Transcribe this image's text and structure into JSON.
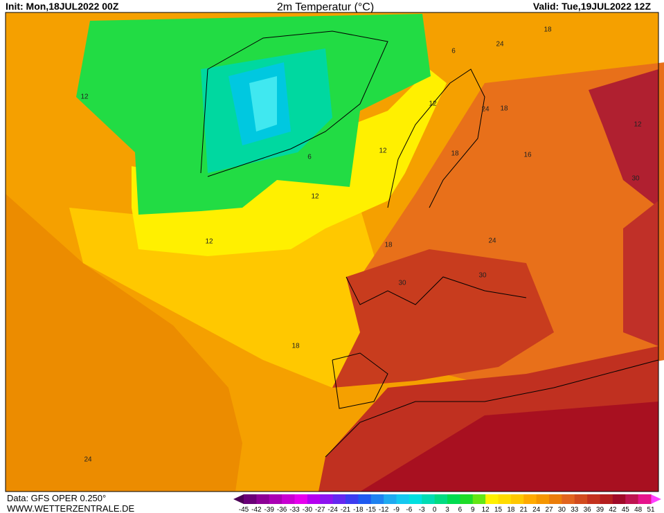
{
  "header": {
    "init": "Init: Mon,18JUL2022 00Z",
    "title": "2m Temperatur (°C)",
    "valid": "Valid: Tue,19JUL2022 12Z"
  },
  "footer": {
    "data_source": "Data: GFS OPER 0.250°",
    "website": "WWW.WETTERZENTRALE.DE"
  },
  "legend": {
    "ticks": [
      -45,
      -42,
      -39,
      -36,
      -33,
      -30,
      -27,
      -24,
      -21,
      -18,
      -15,
      -12,
      -9,
      -6,
      -3,
      0,
      3,
      6,
      9,
      12,
      15,
      18,
      21,
      24,
      27,
      30,
      33,
      36,
      39,
      42,
      45,
      48,
      51
    ],
    "colors": [
      "#6a0078",
      "#8c0096",
      "#aa00b4",
      "#c800d2",
      "#e600ee",
      "#b400f0",
      "#8c14f0",
      "#6428f0",
      "#3c3cf0",
      "#1e5af0",
      "#1e82f0",
      "#1eaaf0",
      "#14c8f0",
      "#00e0e0",
      "#00dcb4",
      "#00dc82",
      "#00dc50",
      "#1edc28",
      "#64e614",
      "#fff000",
      "#ffdc00",
      "#ffc800",
      "#ffaa00",
      "#f59600",
      "#eb7d0a",
      "#e1641e",
      "#d24b1e",
      "#c3321e",
      "#b41e1e",
      "#a00a28",
      "#be1450",
      "#e6148c"
    ]
  },
  "map": {
    "contour_labels": [
      12,
      12,
      12,
      12,
      12,
      6,
      6,
      18,
      24,
      24,
      18,
      18,
      16,
      12,
      30,
      24,
      18,
      30,
      30,
      18,
      24
    ]
  }
}
